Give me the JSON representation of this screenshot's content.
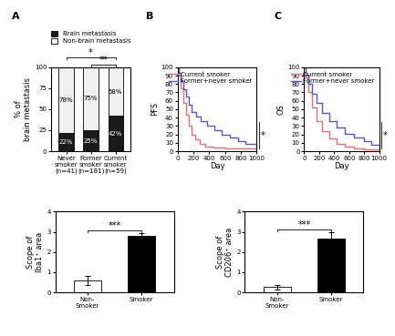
{
  "chart_data": [
    {
      "type": "bar",
      "title": "A",
      "stacked": true,
      "data_labels": true,
      "legend": "lower center",
      "categories": [
        "Never\nsmoker\n(n=41)",
        "Former\nsmoker\n(n=181)",
        "Current\nsmoker\n(n=59)"
      ],
      "series": [
        {
          "name": "Brain metastasis",
          "color": "#1a1a1a",
          "values": [
            22,
            25,
            42
          ],
          "value_labels": [
            "22%",
            "25%",
            "42%"
          ]
        },
        {
          "name": "Non-brain metastasis",
          "color": "#f0f0f0",
          "values": [
            78,
            75,
            58
          ],
          "value_labels": [
            "78%",
            "75%",
            "58%"
          ]
        }
      ],
      "ylabel": "% of\nbrain metastasis",
      "ylim": [
        0,
        100
      ],
      "yticks": [
        0,
        25,
        50,
        75,
        100
      ],
      "annotations": [
        {
          "text": "*",
          "categories": [
            "Never\nsmoker\n(n=41)",
            "Current\nsmoker\n(n=59)"
          ]
        },
        {
          "text": "**",
          "categories": [
            "Former\nsmoker\n(n=181)",
            "Current\nsmoker\n(n=59)"
          ]
        }
      ]
    },
    {
      "type": "step",
      "title": "B",
      "xlabel": "Day",
      "ylabel": "PFS",
      "legend": "upper right",
      "series": [
        {
          "name": "Current smoker",
          "color": "#e87070",
          "x": [
            0,
            15,
            40,
            70,
            100,
            140,
            180,
            220,
            280,
            350,
            450,
            600,
            1000
          ],
          "values": [
            100,
            90,
            75,
            58,
            43,
            30,
            20,
            14,
            9,
            6,
            4,
            3,
            2
          ]
        },
        {
          "name": "Former+never smoker",
          "color": "#5555cc",
          "x": [
            0,
            15,
            40,
            70,
            100,
            140,
            180,
            230,
            290,
            370,
            460,
            560,
            660,
            760,
            860,
            1000
          ],
          "values": [
            100,
            93,
            84,
            74,
            65,
            55,
            47,
            41,
            36,
            30,
            25,
            20,
            16,
            12,
            9,
            5
          ]
        }
      ],
      "xlim": [
        0,
        1000
      ],
      "xticks": [
        0,
        200,
        400,
        600,
        800,
        1000
      ],
      "ylim": [
        0,
        100
      ],
      "yticks": [
        0,
        10,
        20,
        30,
        40,
        50,
        60,
        70,
        80,
        90,
        100
      ],
      "annotations": [
        {
          "text": "*"
        }
      ]
    },
    {
      "type": "step",
      "title": "C",
      "xlabel": "Day",
      "ylabel": "OS",
      "legend": "upper right",
      "series": [
        {
          "name": "Current smoker",
          "color": "#e87070",
          "x": [
            0,
            20,
            60,
            110,
            170,
            240,
            330,
            430,
            540,
            660,
            800,
            1000
          ],
          "values": [
            100,
            88,
            70,
            52,
            36,
            24,
            15,
            9,
            5,
            3,
            2,
            1
          ]
        },
        {
          "name": "Former+never smoker",
          "color": "#5555cc",
          "x": [
            0,
            20,
            60,
            110,
            170,
            240,
            330,
            430,
            540,
            660,
            800,
            900,
            1000
          ],
          "values": [
            100,
            91,
            80,
            68,
            57,
            46,
            36,
            28,
            21,
            16,
            12,
            8,
            4
          ]
        }
      ],
      "xlim": [
        0,
        1000
      ],
      "xticks": [
        0,
        200,
        400,
        600,
        800,
        1000
      ],
      "ylim": [
        0,
        100
      ],
      "yticks": [
        0,
        10,
        20,
        30,
        40,
        50,
        60,
        70,
        80,
        90,
        100
      ],
      "annotations": [
        {
          "text": "*"
        }
      ]
    },
    {
      "type": "bar",
      "categories": [
        "Non-\nSmoker",
        "Smoker"
      ],
      "values": [
        0.6,
        2.8
      ],
      "errors": [
        0.22,
        0.15
      ],
      "colors": [
        "white",
        "black"
      ],
      "ylabel": "Scope of\nIba1⁺ area",
      "ylim": [
        0,
        4
      ],
      "yticks": [
        0,
        1,
        2,
        3,
        4
      ],
      "annotations": [
        {
          "text": "***",
          "categories": [
            "Non-\nSmoker",
            "Smoker"
          ]
        }
      ]
    },
    {
      "type": "bar",
      "categories": [
        "Non-\nSmoker",
        "Smoker"
      ],
      "values": [
        0.25,
        2.65
      ],
      "errors": [
        0.1,
        0.35
      ],
      "colors": [
        "white",
        "black"
      ],
      "ylabel": "Scope of\nCD206⁺ area",
      "ylim": [
        0,
        4
      ],
      "yticks": [
        0,
        1,
        2,
        3,
        4
      ],
      "annotations": [
        {
          "text": "***",
          "categories": [
            "Non-\nSmoker",
            "Smoker"
          ]
        }
      ]
    }
  ]
}
